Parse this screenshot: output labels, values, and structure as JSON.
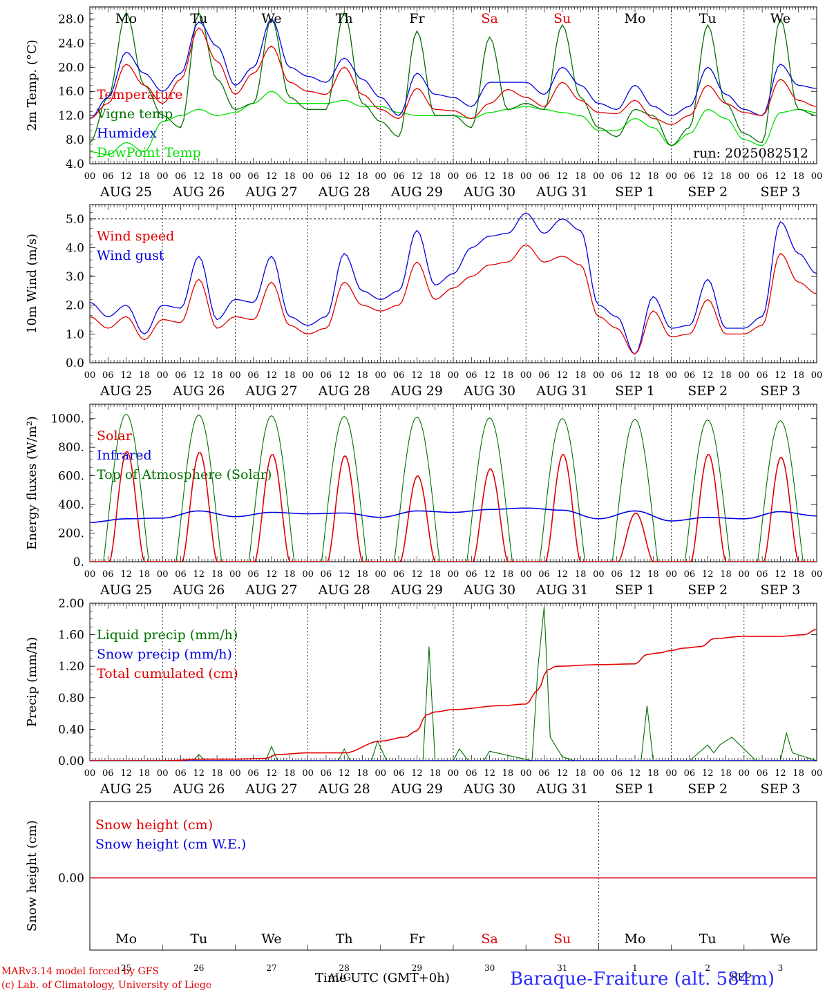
{
  "run_label": "run: 2025082512",
  "days": [
    "Mo",
    "Tu",
    "We",
    "Th",
    "Fr",
    "Sa",
    "Su",
    "Mo",
    "Tu",
    "We"
  ],
  "day_colors": [
    "#000",
    "#000",
    "#000",
    "#000",
    "#000",
    "#e00000",
    "#e00000",
    "#000",
    "#000",
    "#000"
  ],
  "dates": [
    "AUG 25",
    "AUG 26",
    "AUG 27",
    "AUG 28",
    "AUG 29",
    "AUG 30",
    "AUG 31",
    "SEP  1",
    "SEP  2",
    "SEP  3"
  ],
  "hour_ticks": [
    "00",
    "06",
    "12",
    "18"
  ],
  "hour_end": "00",
  "bottom_day_numbers": [
    "25",
    "26",
    "27",
    "28",
    "29",
    "30",
    "31",
    "1",
    "2",
    "3"
  ],
  "footer": {
    "model": "MARv3.14 model forced by GFS",
    "copyright": "(c) Lab. of Climatology, University of Liege",
    "time_label": "Time UTC (GMT+0h)",
    "overlap_aug": "AUG",
    "overlap_sep": "SEP",
    "station": "Baraque-Fraiture (alt. 584m)"
  },
  "chart_data": [
    {
      "type": "line",
      "ylabel": "2m Temp. (°C)",
      "ylim": [
        4,
        30
      ],
      "yticks": [
        "4.0",
        "8.0",
        "12.0",
        "16.0",
        "20.0",
        "24.0",
        "28.0"
      ],
      "x_hours": [
        0,
        6,
        12,
        18,
        24,
        30,
        36,
        42,
        48,
        54,
        60,
        66,
        72,
        78,
        84,
        90,
        96,
        102,
        108,
        114,
        120,
        126,
        132,
        138,
        144,
        150,
        156,
        162,
        168,
        174,
        180,
        186,
        192,
        198,
        204,
        210,
        216,
        222,
        228,
        234,
        240
      ],
      "series": [
        {
          "name": "Temperature",
          "color": "#e00000",
          "values": [
            11.5,
            14,
            20.5,
            17,
            14,
            18,
            26.5,
            21,
            15.5,
            19,
            23.5,
            17.5,
            16,
            15.5,
            20,
            15.5,
            13,
            11.5,
            16.5,
            13,
            12.8,
            11.5,
            14,
            16.3,
            15,
            13.5,
            17.5,
            14.5,
            12.5,
            12.3,
            14.5,
            11.5,
            10.5,
            12,
            17,
            14,
            12.5,
            12,
            18,
            14.5,
            13.5
          ]
        },
        {
          "name": "Vigne temp",
          "color": "#007000",
          "values": [
            7.5,
            15,
            29,
            17,
            12,
            10,
            29,
            18,
            13,
            14,
            28,
            15,
            13,
            13,
            29,
            14,
            11,
            8.5,
            26,
            12,
            12,
            10,
            25,
            13,
            14,
            13,
            27,
            15,
            10,
            8.5,
            13,
            12,
            7,
            10,
            27,
            14,
            9,
            7.5,
            28,
            13,
            12
          ]
        },
        {
          "name": "Humidex",
          "color": "#0000e0",
          "values": [
            11.5,
            15,
            22.5,
            19,
            16,
            19,
            27.5,
            23.5,
            17,
            20,
            28,
            20,
            18.5,
            17.5,
            21.5,
            18,
            15,
            12,
            19,
            15.5,
            15,
            13.5,
            17.5,
            17.5,
            17.5,
            15.5,
            20,
            17,
            14,
            13,
            17,
            13.5,
            12,
            13.5,
            20,
            15.5,
            13,
            12,
            20.5,
            17,
            16.5
          ]
        },
        {
          "name": "DewPoint Temp",
          "color": "#00e000",
          "values": [
            6,
            5.5,
            7.5,
            6,
            11,
            12,
            13,
            12,
            12.5,
            14,
            16,
            14,
            14,
            14,
            14.5,
            13.5,
            13.5,
            12.5,
            12,
            12,
            12,
            11.5,
            12.5,
            13,
            13.5,
            13,
            12.5,
            12,
            9.5,
            9.5,
            11.5,
            10,
            7,
            9,
            13,
            11.5,
            8,
            7,
            12.5,
            13,
            12.5
          ]
        }
      ]
    },
    {
      "type": "line",
      "ylabel": "10m Wind (m/s)",
      "ylim": [
        0,
        5.5
      ],
      "yticks": [
        "0.0",
        "1.0",
        "2.0",
        "3.0",
        "4.0",
        "5.0"
      ],
      "reference_line": 5.0,
      "x_hours": [
        0,
        6,
        12,
        18,
        24,
        30,
        36,
        42,
        48,
        54,
        60,
        66,
        72,
        78,
        84,
        90,
        96,
        102,
        108,
        114,
        120,
        126,
        132,
        138,
        144,
        150,
        156,
        162,
        168,
        174,
        180,
        186,
        192,
        198,
        204,
        210,
        216,
        222,
        228,
        234,
        240
      ],
      "series": [
        {
          "name": "Wind speed",
          "color": "#e00000",
          "values": [
            1.6,
            1.2,
            1.6,
            0.8,
            1.5,
            1.4,
            2.9,
            1.2,
            1.6,
            1.5,
            2.8,
            1.3,
            1.0,
            1.2,
            2.8,
            2.0,
            1.8,
            2.0,
            3.5,
            2.2,
            2.6,
            3.0,
            3.4,
            3.5,
            4.1,
            3.5,
            3.7,
            3.4,
            1.6,
            1.2,
            0.3,
            1.8,
            0.9,
            1.0,
            2.2,
            1.0,
            1.0,
            1.3,
            3.8,
            2.8,
            2.4
          ]
        },
        {
          "name": "Wind gust",
          "color": "#0000e0",
          "values": [
            2.1,
            1.6,
            2.0,
            1.0,
            2.0,
            1.9,
            3.7,
            1.5,
            2.2,
            2.1,
            3.7,
            1.6,
            1.3,
            1.6,
            3.8,
            2.5,
            2.2,
            2.5,
            4.6,
            2.7,
            3.1,
            4.0,
            4.4,
            4.5,
            5.2,
            4.5,
            5.0,
            4.6,
            2.0,
            1.6,
            0.3,
            2.3,
            1.2,
            1.3,
            2.9,
            1.2,
            1.2,
            1.6,
            4.9,
            3.8,
            3.1
          ]
        }
      ]
    },
    {
      "type": "line",
      "ylabel": "Energy fluxes (W/m²)",
      "ylim": [
        0,
        1100
      ],
      "yticks": [
        "0.",
        "200.",
        "400.",
        "600.",
        "800.",
        "1000."
      ],
      "series": [
        {
          "name": "Solar",
          "color": "#e00000",
          "peaks": [
            770,
            765,
            750,
            740,
            600,
            650,
            750,
            340,
            750,
            730
          ]
        },
        {
          "name": "Infrared",
          "color": "#0000e0",
          "x_hours": [
            0,
            12,
            24,
            36,
            48,
            60,
            72,
            84,
            96,
            108,
            120,
            132,
            144,
            156,
            168,
            180,
            192,
            204,
            216,
            228,
            240
          ],
          "values": [
            275,
            300,
            305,
            355,
            315,
            345,
            335,
            340,
            310,
            355,
            345,
            365,
            375,
            360,
            300,
            355,
            285,
            310,
            300,
            350,
            320
          ]
        },
        {
          "name": "Top of Atmosphere (Solar)",
          "color": "#007000",
          "peaks": [
            1030,
            1025,
            1020,
            1015,
            1010,
            1005,
            1000,
            995,
            990,
            985
          ]
        }
      ]
    },
    {
      "type": "line",
      "ylabel": "Precip (mm/h)",
      "ylim": [
        0,
        2.0
      ],
      "yticks": [
        "0.00",
        "0.40",
        "0.80",
        "1.20",
        "1.60",
        "2.00"
      ],
      "series": [
        {
          "name": "Liquid precip (mm/h)",
          "color": "#007000",
          "x_hours": [
            0,
            24,
            34,
            36,
            38,
            58,
            60,
            62,
            72,
            82,
            84,
            86,
            93,
            95,
            98,
            110,
            112,
            114,
            120,
            122,
            125,
            130,
            132,
            146,
            148,
            150,
            152,
            156,
            160,
            168,
            182,
            184,
            186,
            190,
            194,
            198,
            204,
            206,
            208,
            212,
            220,
            228,
            230,
            232,
            240
          ],
          "values": [
            0,
            0,
            0,
            0.08,
            0,
            0,
            0.18,
            0,
            0,
            0,
            0.15,
            0,
            0,
            0.25,
            0,
            0,
            1.45,
            0,
            0,
            0.15,
            0,
            0,
            0.12,
            0,
            1.2,
            1.95,
            0.3,
            0.05,
            0,
            0,
            0,
            0.7,
            0,
            0,
            0,
            0,
            0.2,
            0.1,
            0.2,
            0.3,
            0,
            0,
            0.35,
            0.1,
            0
          ]
        },
        {
          "name": "Snow precip (mm/h)",
          "color": "#0000e0",
          "x_hours": [
            0,
            240
          ],
          "values": [
            0,
            0
          ]
        },
        {
          "name": "Total cumulated (cm)",
          "color": "#e00000",
          "x_hours": [
            0,
            24,
            38,
            48,
            58,
            62,
            72,
            84,
            96,
            104,
            108,
            111,
            114,
            120,
            136,
            144,
            148,
            151,
            154,
            168,
            180,
            184,
            188,
            192,
            196,
            202,
            206,
            216,
            228,
            236,
            240
          ],
          "values": [
            0,
            0,
            0.02,
            0.02,
            0.03,
            0.08,
            0.1,
            0.1,
            0.25,
            0.3,
            0.38,
            0.58,
            0.62,
            0.65,
            0.7,
            0.72,
            0.9,
            1.15,
            1.2,
            1.22,
            1.23,
            1.35,
            1.37,
            1.4,
            1.43,
            1.45,
            1.55,
            1.58,
            1.58,
            1.6,
            1.67
          ]
        }
      ]
    },
    {
      "type": "line",
      "ylabel": "Snow height (cm)",
      "yticks": [
        "0.00"
      ],
      "series": [
        {
          "name": "Snow height (cm)",
          "color": "#e00000",
          "values": [
            0,
            0
          ]
        },
        {
          "name": "Snow height (cm W.E.)",
          "color": "#0000e0",
          "values": [
            0,
            0
          ]
        }
      ]
    }
  ]
}
